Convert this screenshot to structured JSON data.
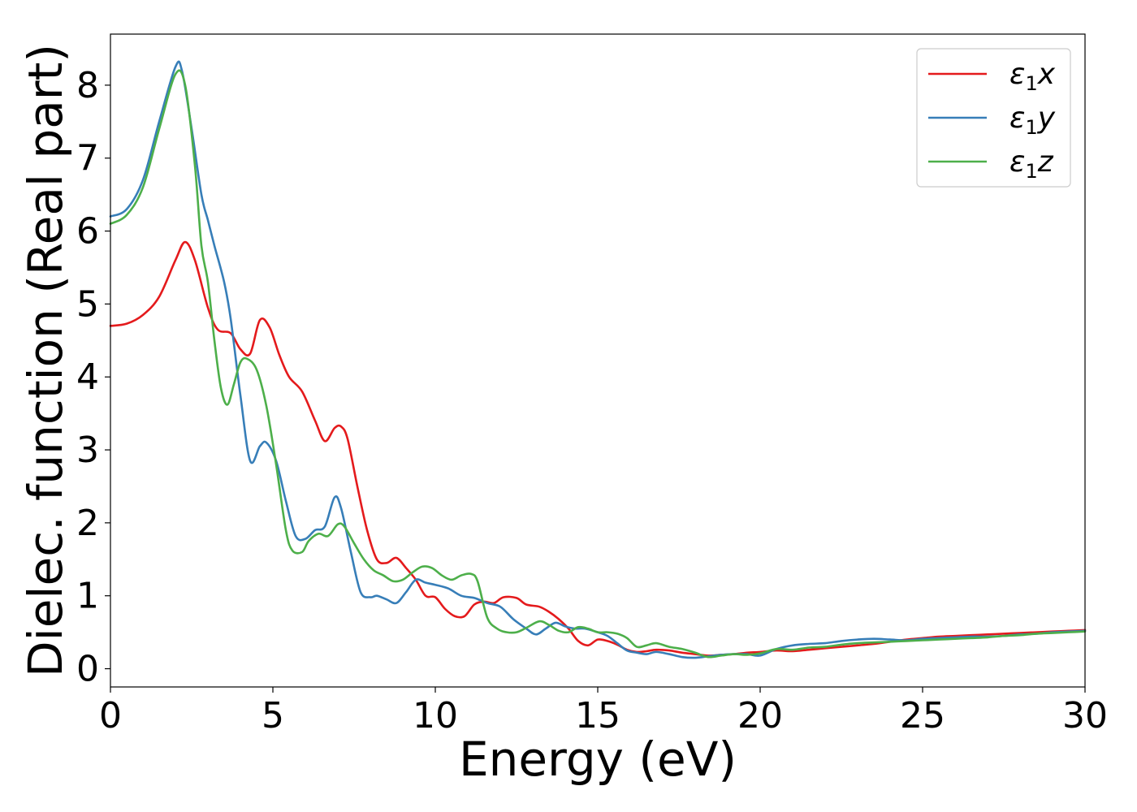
{
  "chart_data": {
    "type": "line",
    "xlabel": "Energy (eV)",
    "ylabel": "Dielec. function (Real part)",
    "xlim": [
      0,
      30
    ],
    "ylim": [
      -0.25,
      8.7
    ],
    "xticks": [
      "0",
      "5",
      "10",
      "15",
      "20",
      "25",
      "30"
    ],
    "yticks": [
      "0",
      "1",
      "2",
      "3",
      "4",
      "5",
      "6",
      "7",
      "8"
    ],
    "grid": false,
    "legend_position": "top-right",
    "series": [
      {
        "name": "ε1x",
        "legend": {
          "main": "ε",
          "sub": "1",
          "tail": "x"
        },
        "color": "#e41a1c",
        "x": [
          0,
          0.5,
          1.0,
          1.5,
          2.0,
          2.3,
          2.6,
          3.0,
          3.3,
          3.7,
          4.0,
          4.3,
          4.6,
          4.9,
          5.2,
          5.5,
          5.9,
          6.3,
          6.6,
          6.9,
          7.1,
          7.3,
          7.6,
          7.9,
          8.2,
          8.5,
          8.8,
          9.1,
          9.4,
          9.7,
          10.0,
          10.3,
          10.6,
          10.9,
          11.2,
          11.5,
          11.8,
          12.1,
          12.5,
          12.8,
          13.2,
          13.5,
          13.8,
          14.1,
          14.4,
          14.7,
          15.0,
          15.3,
          15.6,
          15.9,
          16.2,
          16.5,
          16.8,
          17.2,
          17.6,
          18.0,
          18.4,
          18.8,
          19.2,
          19.6,
          20.0,
          20.5,
          21.0,
          21.5,
          22.0,
          22.5,
          23.0,
          23.5,
          24.0,
          24.5,
          25.0,
          25.5,
          26.0,
          26.5,
          27.0,
          27.5,
          28.0,
          28.5,
          29.0,
          29.5,
          30.0
        ],
        "y": [
          4.7,
          4.73,
          4.85,
          5.1,
          5.6,
          5.85,
          5.6,
          4.95,
          4.65,
          4.6,
          4.38,
          4.32,
          4.78,
          4.68,
          4.3,
          4.0,
          3.8,
          3.4,
          3.12,
          3.3,
          3.32,
          3.15,
          2.5,
          1.9,
          1.5,
          1.45,
          1.52,
          1.38,
          1.22,
          1.0,
          0.98,
          0.82,
          0.72,
          0.72,
          0.88,
          0.92,
          0.9,
          0.98,
          0.97,
          0.88,
          0.85,
          0.78,
          0.68,
          0.55,
          0.38,
          0.32,
          0.4,
          0.38,
          0.33,
          0.26,
          0.23,
          0.24,
          0.26,
          0.25,
          0.22,
          0.2,
          0.18,
          0.19,
          0.2,
          0.22,
          0.23,
          0.25,
          0.24,
          0.26,
          0.28,
          0.3,
          0.32,
          0.34,
          0.37,
          0.4,
          0.42,
          0.44,
          0.45,
          0.46,
          0.47,
          0.48,
          0.49,
          0.5,
          0.51,
          0.52,
          0.53
        ]
      },
      {
        "name": "ε1y",
        "legend": {
          "main": "ε",
          "sub": "1",
          "tail": "y"
        },
        "color": "#377eb8",
        "x": [
          0,
          0.5,
          1.0,
          1.5,
          2.0,
          2.2,
          2.5,
          2.8,
          3.0,
          3.2,
          3.5,
          3.7,
          4.0,
          4.3,
          4.6,
          4.8,
          5.1,
          5.4,
          5.7,
          6.0,
          6.3,
          6.6,
          6.9,
          7.1,
          7.4,
          7.7,
          8.0,
          8.2,
          8.5,
          8.8,
          9.1,
          9.4,
          9.7,
          10.0,
          10.4,
          10.8,
          11.2,
          11.6,
          12.0,
          12.4,
          12.8,
          13.1,
          13.4,
          13.7,
          14.0,
          14.3,
          14.6,
          15.0,
          15.3,
          15.6,
          15.9,
          16.2,
          16.5,
          16.8,
          17.2,
          17.6,
          18.0,
          18.4,
          18.8,
          19.2,
          19.6,
          20.0,
          20.5,
          21.0,
          21.5,
          22.0,
          22.5,
          23.0,
          23.5,
          24.0,
          24.5,
          25.0,
          25.5,
          26.0,
          26.5,
          27.0,
          27.5,
          28.0,
          28.5,
          29.0,
          29.5,
          30.0
        ],
        "y": [
          6.2,
          6.3,
          6.7,
          7.5,
          8.25,
          8.2,
          7.4,
          6.5,
          6.15,
          5.8,
          5.3,
          4.8,
          3.75,
          2.85,
          3.05,
          3.1,
          2.85,
          2.3,
          1.82,
          1.78,
          1.9,
          1.95,
          2.35,
          2.2,
          1.6,
          1.05,
          0.98,
          1.0,
          0.95,
          0.9,
          1.05,
          1.22,
          1.18,
          1.15,
          1.1,
          1.0,
          0.97,
          0.9,
          0.85,
          0.68,
          0.55,
          0.47,
          0.55,
          0.63,
          0.58,
          0.55,
          0.55,
          0.5,
          0.45,
          0.35,
          0.25,
          0.22,
          0.2,
          0.23,
          0.2,
          0.16,
          0.15,
          0.17,
          0.19,
          0.2,
          0.2,
          0.18,
          0.27,
          0.32,
          0.34,
          0.35,
          0.38,
          0.4,
          0.41,
          0.4,
          0.39,
          0.41,
          0.42,
          0.43,
          0.44,
          0.44,
          0.45,
          0.47,
          0.48,
          0.5,
          0.51,
          0.52
        ]
      },
      {
        "name": "ε1z",
        "legend": {
          "main": "ε",
          "sub": "1",
          "tail": "z"
        },
        "color": "#4daf4a",
        "x": [
          0,
          0.5,
          1.0,
          1.5,
          2.0,
          2.3,
          2.6,
          2.8,
          3.0,
          3.2,
          3.4,
          3.6,
          3.8,
          4.0,
          4.2,
          4.5,
          4.8,
          5.1,
          5.4,
          5.6,
          5.9,
          6.1,
          6.4,
          6.7,
          7.0,
          7.2,
          7.5,
          7.8,
          8.1,
          8.4,
          8.7,
          9.0,
          9.3,
          9.6,
          9.9,
          10.2,
          10.5,
          10.8,
          11.1,
          11.3,
          11.6,
          11.9,
          12.2,
          12.5,
          12.8,
          13.2,
          13.5,
          13.8,
          14.1,
          14.4,
          14.7,
          15.0,
          15.3,
          15.6,
          15.9,
          16.2,
          16.5,
          16.8,
          17.2,
          17.6,
          18.0,
          18.4,
          18.8,
          19.2,
          19.6,
          20.0,
          20.5,
          21.0,
          21.5,
          22.0,
          22.5,
          23.0,
          23.5,
          24.0,
          24.5,
          25.0,
          25.5,
          26.0,
          26.5,
          27.0,
          27.5,
          28.0,
          28.5,
          29.0,
          29.5,
          30.0
        ],
        "y": [
          6.1,
          6.22,
          6.6,
          7.4,
          8.15,
          8.0,
          6.9,
          5.8,
          5.3,
          4.5,
          3.85,
          3.62,
          3.9,
          4.2,
          4.25,
          4.1,
          3.6,
          2.8,
          1.9,
          1.62,
          1.6,
          1.75,
          1.85,
          1.82,
          1.98,
          1.95,
          1.72,
          1.5,
          1.35,
          1.28,
          1.2,
          1.22,
          1.32,
          1.4,
          1.38,
          1.28,
          1.22,
          1.28,
          1.3,
          1.2,
          0.7,
          0.55,
          0.5,
          0.5,
          0.56,
          0.65,
          0.6,
          0.52,
          0.5,
          0.57,
          0.55,
          0.5,
          0.5,
          0.48,
          0.42,
          0.3,
          0.32,
          0.35,
          0.3,
          0.27,
          0.22,
          0.16,
          0.18,
          0.2,
          0.19,
          0.21,
          0.27,
          0.26,
          0.29,
          0.3,
          0.33,
          0.35,
          0.36,
          0.37,
          0.38,
          0.39,
          0.4,
          0.41,
          0.42,
          0.43,
          0.45,
          0.46,
          0.48,
          0.49,
          0.5,
          0.51
        ]
      }
    ]
  }
}
